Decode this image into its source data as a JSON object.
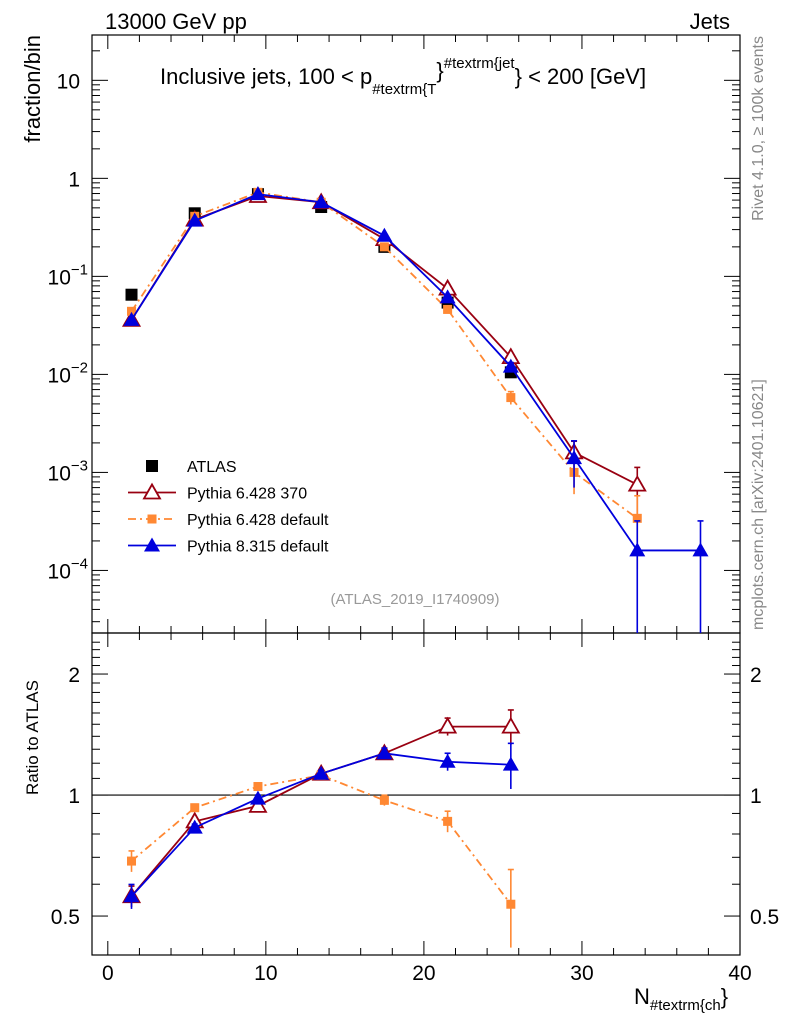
{
  "header": {
    "left": "13000 GeV pp",
    "right": "Jets"
  },
  "side_labels": {
    "rivet": "Rivet 4.1.0, ≥ 100k events",
    "mcplots": "mcplots.cern.ch [arXiv:2401.10621]"
  },
  "watermark": "(ATLAS_2019_I1740909)",
  "colors": {
    "ATLAS": "#000000",
    "py6_370": "#990011",
    "py6_def": "#ff8833",
    "py8": "#0000dd"
  },
  "chart_data": [
    {
      "type": "line",
      "title_parts": {
        "main": "Inclusive jets, 100 < p",
        "sub": "#textrm{T",
        "mid": "}",
        "sup": "#textrm{jet",
        "end": "} < 200 [GeV]"
      },
      "ylabel": "fraction/bin",
      "yscale": "log",
      "ylim": [
        2.3e-05,
        29
      ],
      "xlim": [
        -1,
        40
      ],
      "yticks": [
        {
          "v": 10,
          "base": "10",
          "exp": ""
        },
        {
          "v": 1,
          "base": "1",
          "exp": ""
        },
        {
          "v": 0.1,
          "base": "10",
          "exp": "−1"
        },
        {
          "v": 0.01,
          "base": "10",
          "exp": "−2"
        },
        {
          "v": 0.001,
          "base": "10",
          "exp": "−3"
        },
        {
          "v": 0.0001,
          "base": "10",
          "exp": "−4"
        }
      ],
      "x": [
        1.5,
        5.5,
        9.5,
        13.5,
        17.5,
        21.5,
        25.5,
        29.5,
        33.5,
        37.5
      ],
      "series": [
        {
          "key": "ATLAS",
          "name": "ATLAS",
          "marker": "square",
          "line": "none",
          "values": [
            0.065,
            0.44,
            0.69,
            0.51,
            0.2,
            0.054,
            0.0105,
            null,
            null,
            null
          ]
        },
        {
          "key": "py6_370",
          "name": "Pythia 6.428 370",
          "marker": "open-triangle",
          "line": "solid",
          "values": [
            0.036,
            0.38,
            0.66,
            0.57,
            0.24,
            0.075,
            0.015,
            0.0016,
            0.00075,
            null
          ],
          "err_rel": [
            0,
            0,
            0,
            0,
            0,
            0.05,
            0.08,
            0.3,
            0.5,
            0
          ]
        },
        {
          "key": "py6_def",
          "name": "Pythia 6.428 default",
          "marker": "square-small",
          "line": "dashdot",
          "values": [
            0.044,
            0.41,
            0.72,
            0.57,
            0.2,
            0.046,
            0.0058,
            0.001,
            0.00034,
            null
          ],
          "err_rel": [
            0,
            0,
            0,
            0,
            0,
            0,
            0.15,
            0.4,
            0.7,
            0
          ]
        },
        {
          "key": "py8",
          "name": "Pythia 8.315 default",
          "marker": "triangle",
          "line": "solid",
          "values": [
            0.036,
            0.37,
            0.69,
            0.57,
            0.26,
            0.061,
            0.012,
            0.0014,
            0.00016,
            0.00016
          ],
          "err_rel": [
            0,
            0,
            0,
            0,
            0,
            0.04,
            0.1,
            0.5,
            1.0,
            1.0
          ]
        }
      ]
    },
    {
      "type": "line",
      "ylabel": "Ratio to ATLAS",
      "xlabel_parts": {
        "main": "N",
        "sub": "#textrm{ch",
        "end": "}"
      },
      "yscale": "log",
      "ylim": [
        0.4,
        2.53
      ],
      "xlim": [
        -1,
        40
      ],
      "xticks": [
        0,
        10,
        20,
        30,
        40
      ],
      "yticks": [
        {
          "v": 0.5,
          "label": "0.5"
        },
        {
          "v": 1,
          "label": "1"
        },
        {
          "v": 2,
          "label": "2"
        }
      ],
      "x": [
        1.5,
        5.5,
        9.5,
        13.5,
        17.5,
        21.5,
        25.5
      ],
      "series": [
        {
          "key": "py6_370",
          "name": "Pythia 6.428 370",
          "values": [
            0.56,
            0.86,
            0.94,
            1.13,
            1.27,
            1.48,
            1.48
          ],
          "err_rel": [
            0.06,
            0.02,
            0.02,
            0.02,
            0.03,
            0.05,
            0.1
          ]
        },
        {
          "key": "py6_def",
          "name": "Pythia 6.428 default",
          "values": [
            0.685,
            0.93,
            1.05,
            1.12,
            0.97,
            0.86,
            0.535
          ],
          "err_rel": [
            0.06,
            0.02,
            0.02,
            0.02,
            0.03,
            0.06,
            0.22
          ]
        },
        {
          "key": "py8",
          "name": "Pythia 8.315 default",
          "values": [
            0.56,
            0.83,
            0.98,
            1.13,
            1.27,
            1.21,
            1.19
          ],
          "err_rel": [
            0.07,
            0.02,
            0.02,
            0.02,
            0.03,
            0.05,
            0.13
          ]
        }
      ]
    }
  ]
}
